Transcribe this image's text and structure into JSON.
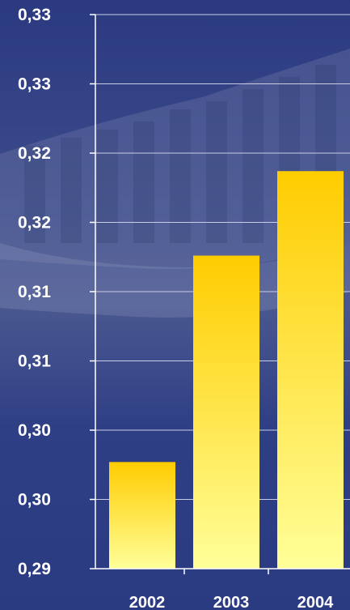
{
  "chart_data": {
    "type": "bar",
    "categories": [
      "2002",
      "2003",
      "2004"
    ],
    "values": [
      0.2977,
      0.3126,
      0.3187
    ],
    "ylim": [
      0.29,
      0.33
    ],
    "y_ticks": [
      {
        "value": 0.29,
        "label": "0,29"
      },
      {
        "value": 0.295,
        "label": "0,30"
      },
      {
        "value": 0.3,
        "label": "0,30"
      },
      {
        "value": 0.305,
        "label": "0,31"
      },
      {
        "value": 0.31,
        "label": "0,31"
      },
      {
        "value": 0.315,
        "label": "0,32"
      },
      {
        "value": 0.32,
        "label": "0,32"
      },
      {
        "value": 0.325,
        "label": "0,33"
      },
      {
        "value": 0.33,
        "label": "0,33"
      }
    ],
    "grid": true,
    "title": "",
    "xlabel": "",
    "ylabel": "",
    "colors": {
      "background": "#2e3f86",
      "bar_top": "#ffcc00",
      "bar_bottom": "#ffff99",
      "axis": "#ffffff",
      "text": "#ffffff"
    }
  }
}
